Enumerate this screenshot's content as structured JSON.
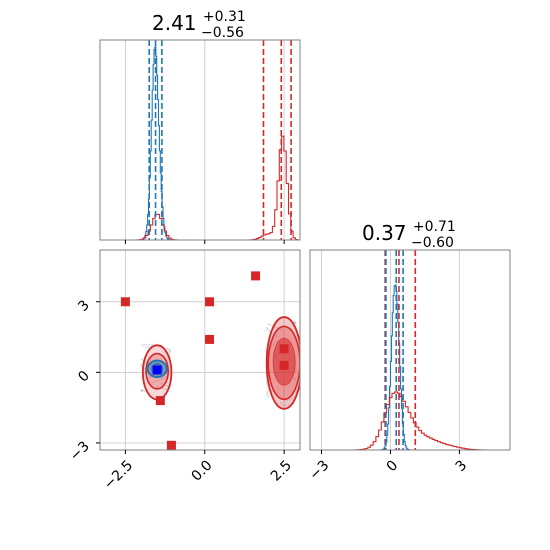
{
  "colors": {
    "blue": "#1f77b4",
    "red": "#d62728",
    "grid": "#d0d0d0",
    "axis": "#808080"
  },
  "chart_data": {
    "type": "corner",
    "grid": true,
    "series": [
      {
        "color": "#1f77b4",
        "mean": [
          -1.55,
          0.2
        ],
        "std": [
          0.12,
          0.25
        ]
      },
      {
        "color": "#d62728",
        "mean": [
          2.41,
          0.37
        ],
        "std": [
          0.18,
          0.9
        ]
      }
    ],
    "panels": [
      {
        "id": "hist_x",
        "title": {
          "value": "2.41",
          "plus": "+0.31",
          "minus": "−0.56"
        },
        "xlim": [
          -3.3,
          3.0
        ],
        "quantiles": {
          "blue": [
            -1.75,
            -1.55,
            -1.35
          ],
          "red": [
            1.85,
            2.41,
            2.72
          ]
        },
        "peak_counts": {
          "blue": 1.0,
          "red_main": 0.6,
          "red_minor": 0.13
        }
      },
      {
        "id": "hist_y",
        "title": {
          "value": "0.37",
          "plus": "+0.71",
          "minus": "−0.60"
        },
        "xlim": [
          -3.5,
          5.2
        ],
        "xticks": [
          -3,
          0,
          3
        ],
        "xticklabels": [
          "−3",
          "0",
          "3"
        ],
        "quantiles": {
          "blue": [
            -0.2,
            0.25,
            0.55
          ],
          "red": [
            -0.23,
            0.37,
            1.08
          ]
        }
      },
      {
        "id": "scatter_xy",
        "xlim": [
          -3.3,
          3.0
        ],
        "ylim": [
          -3.3,
          5.2
        ],
        "xticks": [
          -2.5,
          0.0,
          2.5
        ],
        "xticklabels": [
          "−2.5",
          "0.0",
          "2.5"
        ],
        "yticks": [
          -3,
          0,
          3
        ],
        "yticklabels": [
          "−3",
          "0",
          "3"
        ],
        "red_markers": [
          [
            -2.5,
            3.0
          ],
          [
            0.15,
            3.0
          ],
          [
            1.6,
            4.1
          ],
          [
            0.15,
            1.4
          ],
          [
            2.5,
            1.0
          ],
          [
            2.5,
            0.3
          ],
          [
            -1.4,
            -1.2
          ],
          [
            -1.05,
            -3.1
          ]
        ],
        "blue_markers": [
          [
            -1.5,
            0.1
          ]
        ]
      }
    ]
  }
}
